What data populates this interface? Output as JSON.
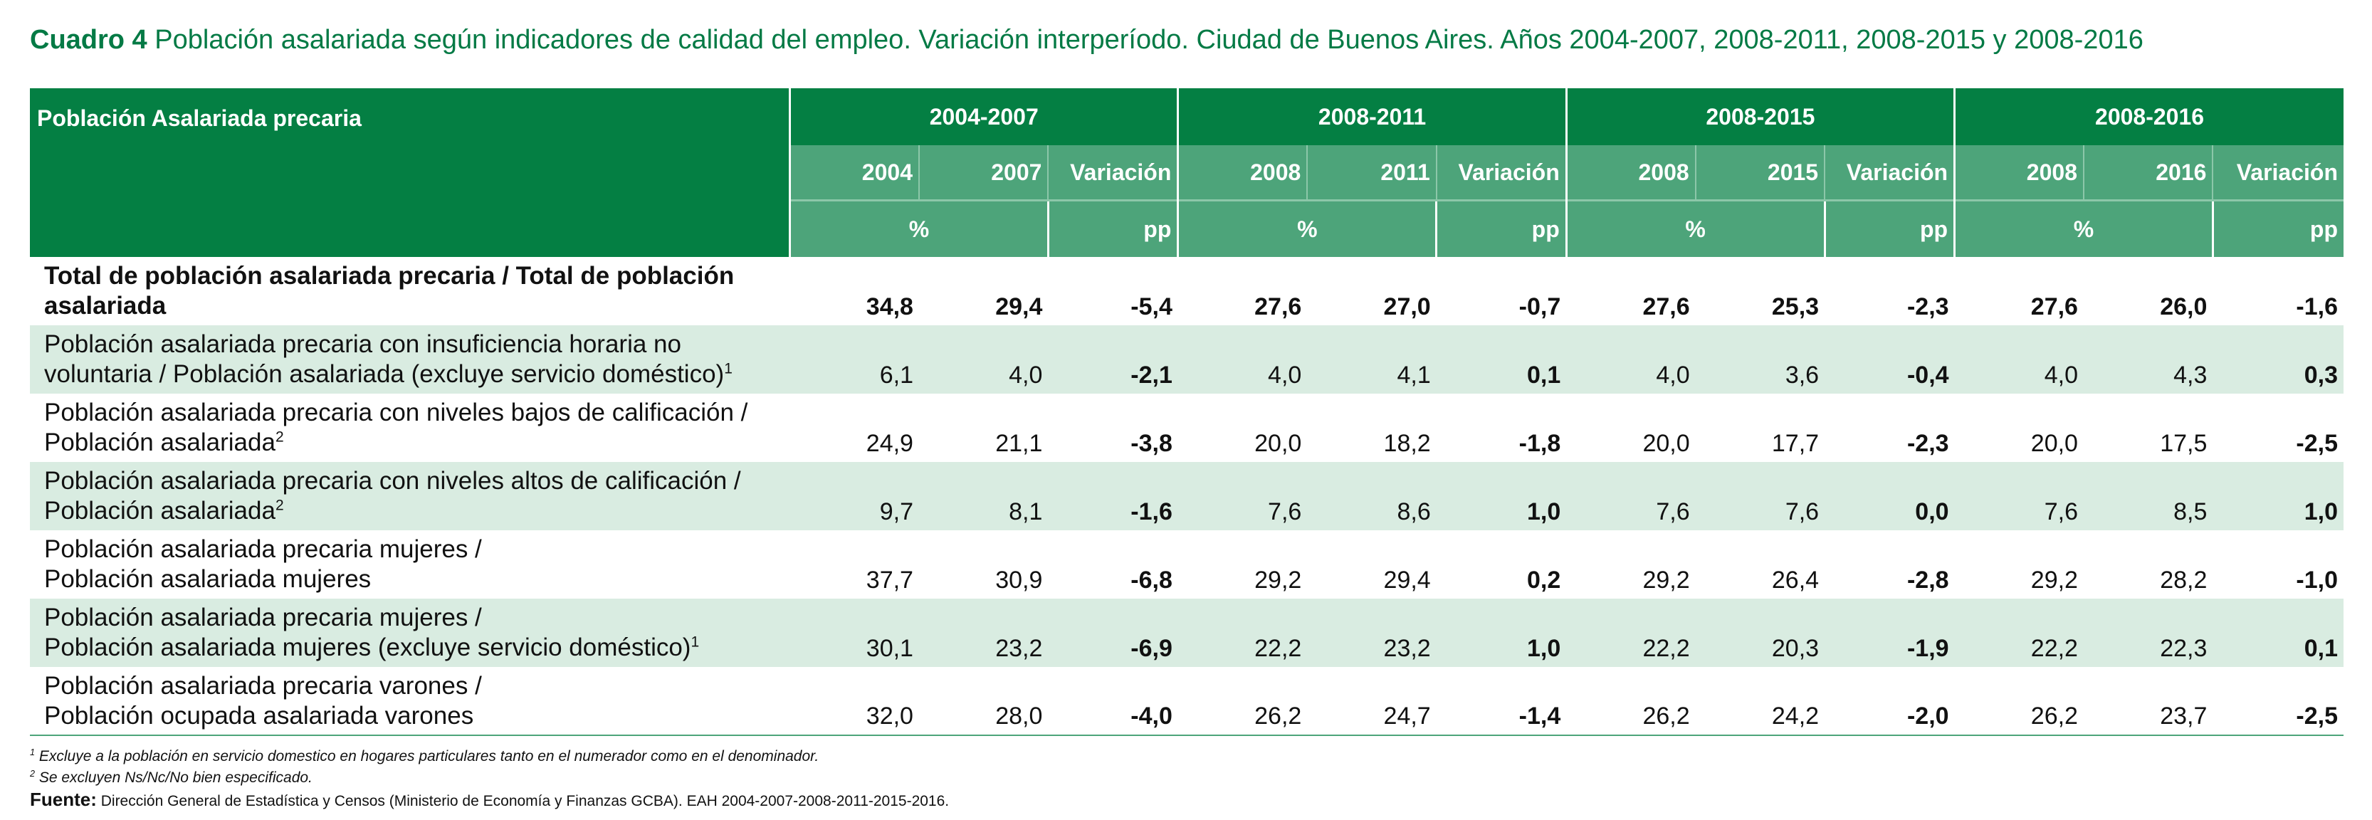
{
  "title": {
    "prefix": "Cuadro 4",
    "text": "Población asalariada según indicadores de calidad del empleo. Variación interperíodo. Ciudad de Buenos Aires. Años 2004-2007, 2008-2011, 2008-2015 y 2008-2016"
  },
  "table": {
    "corner_label": "Población Asalariada precaria",
    "periods": [
      {
        "label": "2004-2007",
        "col1": "2004",
        "col2": "2007",
        "var": "Variación"
      },
      {
        "label": "2008-2011",
        "col1": "2008",
        "col2": "2011",
        "var": "Variación"
      },
      {
        "label": "2008-2015",
        "col1": "2008",
        "col2": "2015",
        "var": "Variación"
      },
      {
        "label": "2008-2016",
        "col1": "2008",
        "col2": "2016",
        "var": "Variación"
      }
    ],
    "unit_pct": "%",
    "unit_pp": "pp",
    "rows": [
      {
        "label_line1": "Total de población asalariada precaria / Total de población",
        "label_line2": "asalariada",
        "sup": "",
        "values": [
          "34,8",
          "29,4",
          "-5,4",
          "27,6",
          "27,0",
          "-0,7",
          "27,6",
          "25,3",
          "-2,3",
          "27,6",
          "26,0",
          "-1,6"
        ]
      },
      {
        "label_line1": "Población asalariada precaria con insuficiencia horaria no",
        "label_line2": "voluntaria / Población asalariada (excluye servicio doméstico)",
        "sup": "1",
        "values": [
          "6,1",
          "4,0",
          "-2,1",
          "4,0",
          "4,1",
          "0,1",
          "4,0",
          "3,6",
          "-0,4",
          "4,0",
          "4,3",
          "0,3"
        ]
      },
      {
        "label_line1": "Población asalariada precaria con niveles bajos de calificación /",
        "label_line2": "Población asalariada",
        "sup": "2",
        "values": [
          "24,9",
          "21,1",
          "-3,8",
          "20,0",
          "18,2",
          "-1,8",
          "20,0",
          "17,7",
          "-2,3",
          "20,0",
          "17,5",
          "-2,5"
        ]
      },
      {
        "label_line1": "Población asalariada precaria con niveles altos de calificación /",
        "label_line2": "Población asalariada",
        "sup": "2",
        "values": [
          "9,7",
          "8,1",
          "-1,6",
          "7,6",
          "8,6",
          "1,0",
          "7,6",
          "7,6",
          "0,0",
          "7,6",
          "8,5",
          "1,0"
        ]
      },
      {
        "label_line1": "Población asalariada precaria mujeres /",
        "label_line2": "Población asalariada mujeres",
        "sup": "",
        "values": [
          "37,7",
          "30,9",
          "-6,8",
          "29,2",
          "29,4",
          "0,2",
          "29,2",
          "26,4",
          "-2,8",
          "29,2",
          "28,2",
          "-1,0"
        ]
      },
      {
        "label_line1": "Población asalariada precaria mujeres /",
        "label_line2": "Población asalariada mujeres (excluye servicio doméstico)",
        "sup": "1",
        "values": [
          "30,1",
          "23,2",
          "-6,9",
          "22,2",
          "23,2",
          "1,0",
          "22,2",
          "20,3",
          "-1,9",
          "22,2",
          "22,3",
          "0,1"
        ]
      },
      {
        "label_line1": "Población asalariada precaria varones /",
        "label_line2": "Población ocupada asalariada varones",
        "sup": "",
        "values": [
          "32,0",
          "28,0",
          "-4,0",
          "26,2",
          "24,7",
          "-1,4",
          "26,2",
          "24,2",
          "-2,0",
          "26,2",
          "23,7",
          "-2,5"
        ]
      }
    ]
  },
  "notes": {
    "note1_mark": "1",
    "note1": "Excluye a la población en servicio domestico en hogares particulares tanto en el numerador como en el denominador.",
    "note2_mark": "2",
    "note2": "Se excluyen Ns/Nc/No bien especificado.",
    "source_label": "Fuente:",
    "source_text": "Dirección General de Estadística y Censos (Ministerio de Economía y Finanzas GCBA). EAH 2004-2007-2008-2011-2015-2016."
  },
  "colors": {
    "header_dark": "#047f43",
    "header_mid": "#4da47a",
    "row_alt": "#d9ece1",
    "title": "#047a45"
  }
}
